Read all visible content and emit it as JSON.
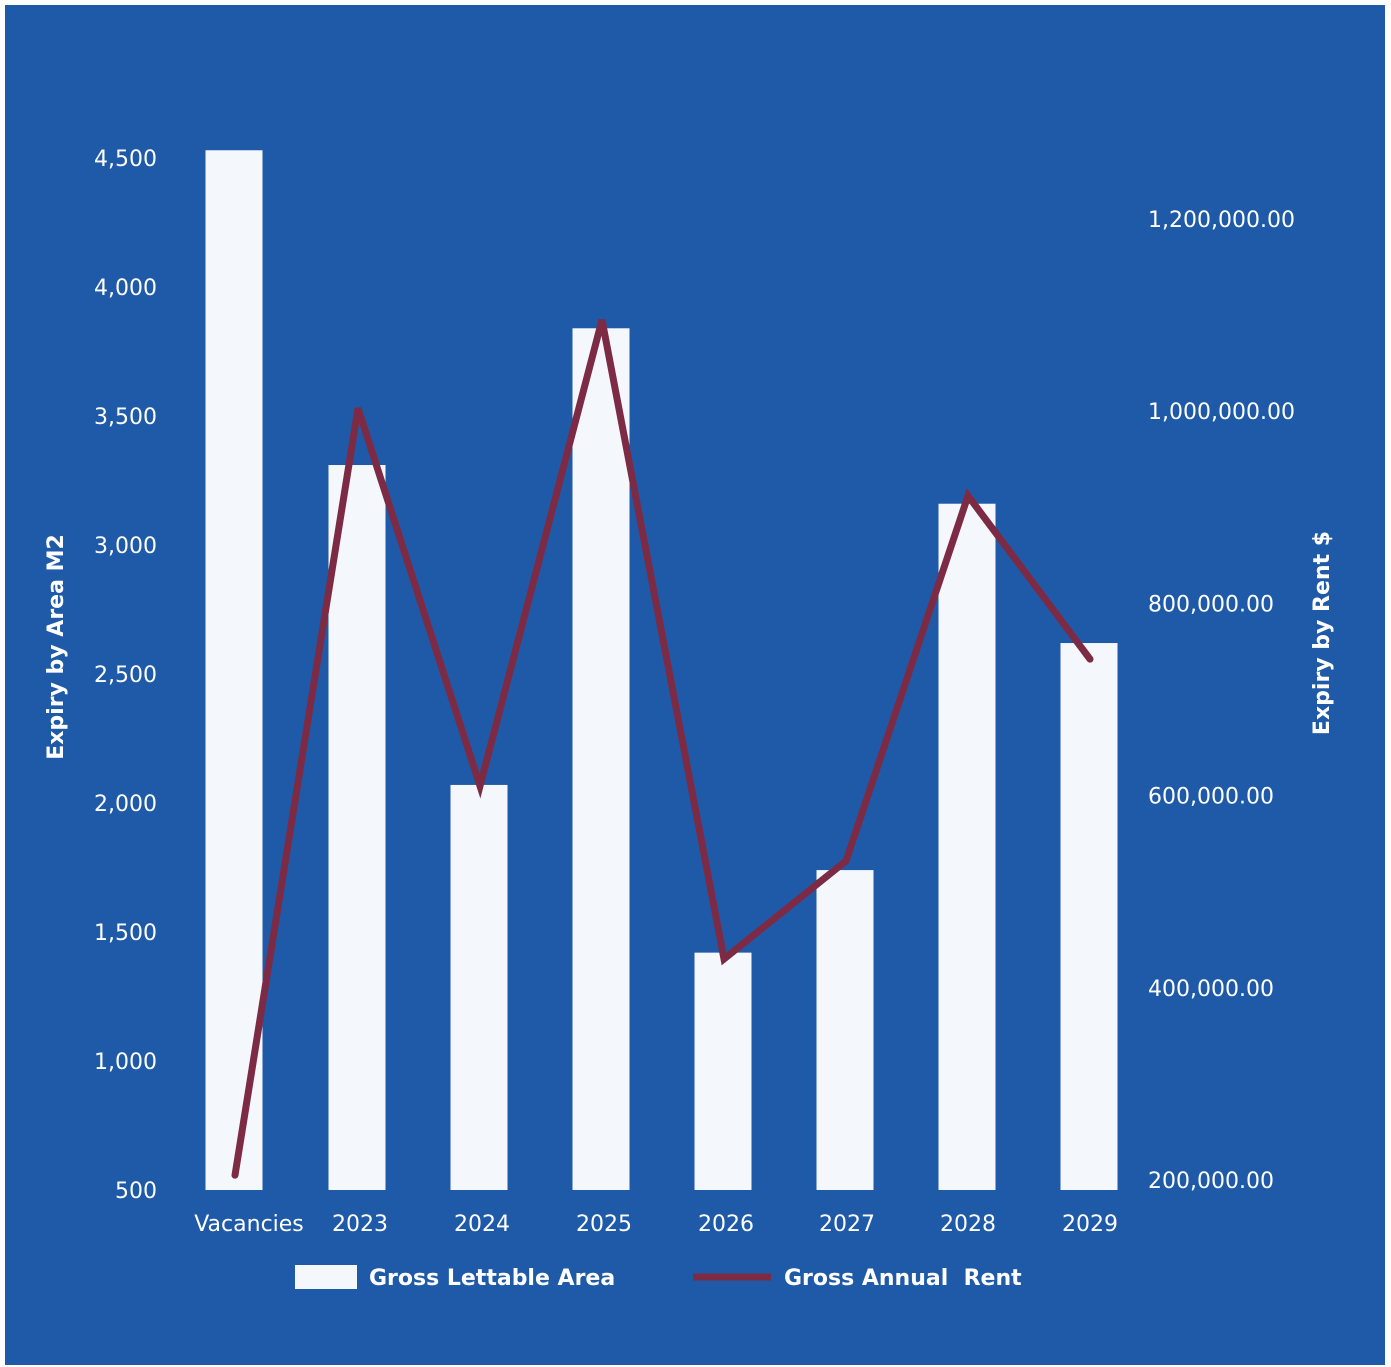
{
  "chart_data": {
    "type": "bar",
    "categories": [
      "Vacancies",
      "2023",
      "2024",
      "2025",
      "2026",
      "2027",
      "2028",
      "2029"
    ],
    "series": [
      {
        "name": "Gross Lettable Area",
        "type": "bar",
        "axis": "left",
        "values": [
          4530,
          3310,
          2070,
          3840,
          1420,
          1740,
          3160,
          2620
        ]
      },
      {
        "name": "Gross Annual  Rent",
        "type": "line",
        "axis": "right",
        "values": [
          205000,
          1003000,
          610000,
          1095000,
          430000,
          532000,
          912000,
          742000
        ]
      }
    ],
    "left_axis": {
      "label": "Expiry by Area M2",
      "ticks": [
        "4,500",
        "4,000",
        "3,500",
        "3,000",
        "2,500",
        "2,000",
        "1,500",
        "1,000",
        "500"
      ],
      "range": [
        500,
        4500
      ]
    },
    "right_axis": {
      "label": "Expiry by Rent $",
      "ticks": [
        "1,200,000.00",
        "1,000,000.00",
        "800,000.00",
        "600,000.00",
        "400,000.00",
        "200,000.00"
      ],
      "range": [
        200000,
        1200000
      ]
    },
    "legend": {
      "position": "bottom"
    },
    "colors": {
      "background": "#1f5aa8",
      "bar": "#f4f7fb",
      "line": "#7d2b45",
      "text": "#ffffff"
    }
  }
}
